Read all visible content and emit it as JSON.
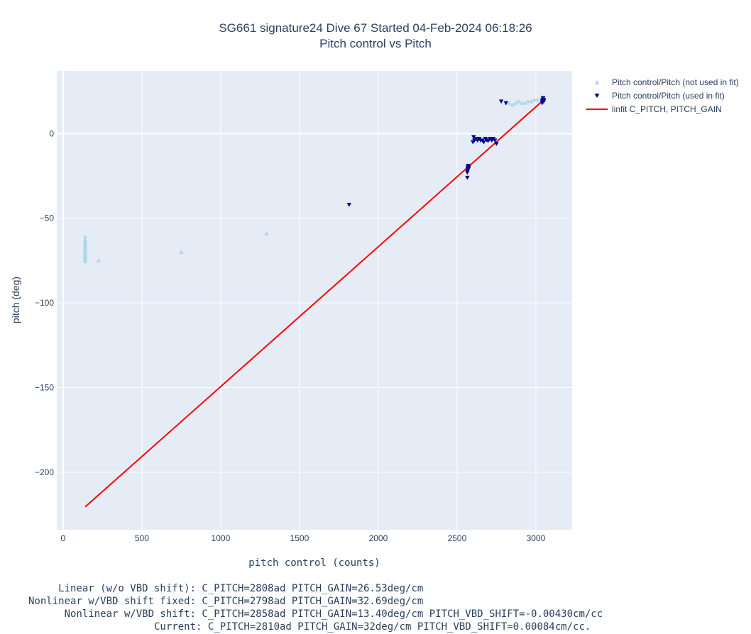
{
  "title_line1": "SG661 signature24 Dive 67 Started 04-Feb-2024 06:18:26",
  "title_line2": "Pitch control vs Pitch",
  "footer": [
    "     Linear (w/o VBD shift): C_PITCH=2808ad PITCH_GAIN=26.53deg/cm",
    "Nonlinear w/VBD shift fixed: C_PITCH=2798ad PITCH_GAIN=32.69deg/cm",
    "      Nonlinear w/VBD shift: C_PITCH=2858ad PITCH_GAIN=13.40deg/cm PITCH_VBD_SHIFT=-0.00430cm/cc",
    "                     Current: C_PITCH=2810ad PITCH_GAIN=32deg/cm PITCH_VBD_SHIFT=0.00084cm/cc."
  ],
  "chart_data": {
    "type": "scatter",
    "xlabel": "pitch control (counts)",
    "ylabel": "pitch (deg)",
    "xlim": [
      -40,
      3230
    ],
    "ylim": [
      -234,
      37
    ],
    "xticks": [
      0,
      500,
      1000,
      1500,
      2000,
      2500,
      3000
    ],
    "yticks": [
      0,
      -50,
      -100,
      -150,
      -200
    ],
    "grid": true,
    "legend_position": "top-right outside",
    "colors": {
      "not_used": "#add8e6",
      "used": "#00008b",
      "fit": "#ff0000",
      "plot_bg": "#e5ecf6"
    },
    "series": [
      {
        "name": "Pitch control/Pitch (not used in fit)",
        "marker": "triangle-up",
        "color": "#add8e6",
        "x": [
          140,
          140,
          140,
          140,
          140,
          140,
          140,
          140,
          140,
          140,
          140,
          140,
          140,
          140,
          140,
          140,
          225,
          750,
          1290,
          2830,
          2850,
          2870,
          2890,
          2910,
          2930,
          2950,
          2970,
          2990,
          3010
        ],
        "y": [
          -61,
          -63,
          -64,
          -65,
          -66,
          -67,
          -68,
          -69,
          -70,
          -71,
          -72,
          -72.5,
          -73,
          -74,
          -75,
          -75.5,
          -75,
          -70,
          -59,
          18,
          17,
          18,
          19,
          18,
          18,
          19,
          19,
          20,
          20
        ]
      },
      {
        "name": "Pitch control/Pitch (used in fit)",
        "marker": "triangle-down",
        "color": "#00008b",
        "x": [
          1815,
          2565,
          2565,
          2567,
          2568,
          2568,
          2570,
          2570,
          2572,
          2575,
          2600,
          2605,
          2610,
          2620,
          2630,
          2640,
          2650,
          2660,
          2670,
          2680,
          2690,
          2700,
          2710,
          2720,
          2730,
          2740,
          2750,
          2780,
          2810,
          3040,
          3040,
          3042,
          3044,
          3045,
          3046,
          3048,
          3050,
          3050
        ],
        "y": [
          -42,
          -26,
          -23,
          -22,
          -21,
          -20,
          -20,
          -19,
          -21,
          -20,
          -5,
          -2,
          -4,
          -3,
          -4,
          -3,
          -4,
          -4,
          -5,
          -3,
          -4,
          -4,
          -3,
          -4,
          -3,
          -4,
          -6,
          19,
          18,
          18,
          19,
          20,
          20,
          21,
          21,
          20,
          20,
          19
        ],
        "size_note": ""
      },
      {
        "name": "linfit C_PITCH, PITCH_GAIN",
        "type": "line",
        "color": "#ff0000",
        "x": [
          140,
          3045
        ],
        "y": [
          -220.5,
          19.5
        ]
      }
    ]
  }
}
